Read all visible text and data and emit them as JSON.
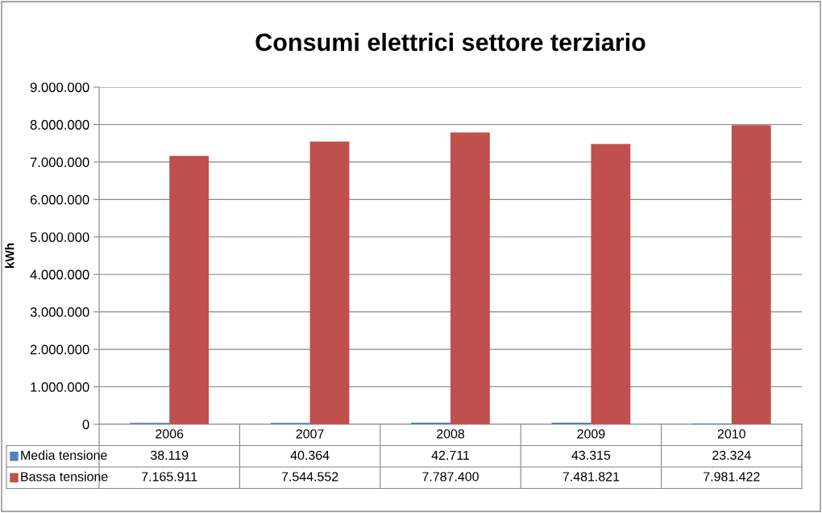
{
  "chart_data": {
    "type": "bar",
    "title": "Consumi elettrici settore terziario",
    "ylabel": "kWh",
    "categories": [
      "2006",
      "2007",
      "2008",
      "2009",
      "2010"
    ],
    "series": [
      {
        "name": "Media tensione",
        "color": "#4f81bd",
        "values": [
          38119,
          40364,
          42711,
          43315,
          23324
        ],
        "value_labels": [
          "38.119",
          "40.364",
          "42.711",
          "43.315",
          "23.324"
        ]
      },
      {
        "name": "Bassa tensione",
        "color": "#c0504d",
        "values": [
          7165911,
          7544552,
          7787400,
          7481821,
          7981422
        ],
        "value_labels": [
          "7.165.911",
          "7.544.552",
          "7.787.400",
          "7.481.821",
          "7.981.422"
        ]
      }
    ],
    "ylim": [
      0,
      9000000
    ],
    "yticks": [
      {
        "value": 0,
        "label": "0"
      },
      {
        "value": 1000000,
        "label": "1.000.000"
      },
      {
        "value": 2000000,
        "label": "2.000.000"
      },
      {
        "value": 3000000,
        "label": "3.000.000"
      },
      {
        "value": 4000000,
        "label": "4.000.000"
      },
      {
        "value": 5000000,
        "label": "5.000.000"
      },
      {
        "value": 6000000,
        "label": "6.000.000"
      },
      {
        "value": 7000000,
        "label": "7.000.000"
      },
      {
        "value": 8000000,
        "label": "8.000.000"
      },
      {
        "value": 9000000,
        "label": "9.000.000"
      }
    ],
    "grid": "y",
    "legend": "bottom"
  }
}
